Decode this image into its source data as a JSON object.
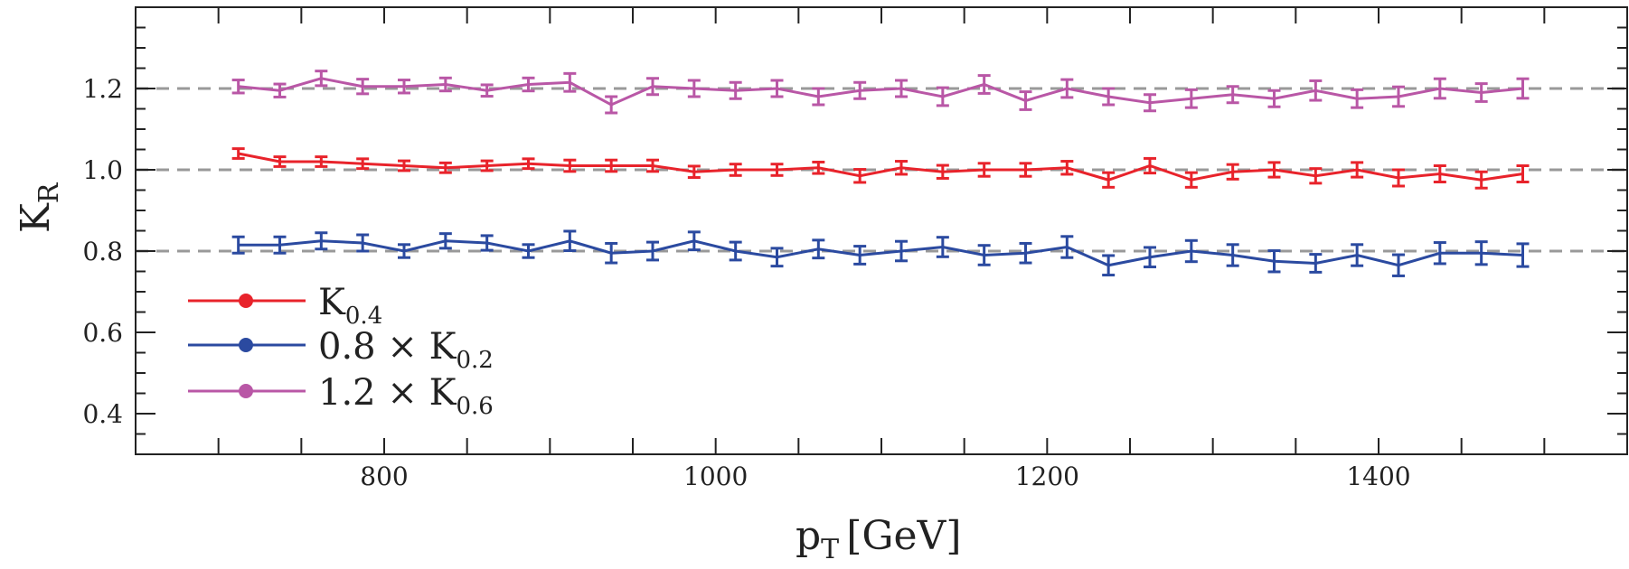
{
  "chart_data": {
    "type": "line",
    "xlabel_main": "p",
    "xlabel_sub": "T",
    "xlabel_unit": "[GeV]",
    "ylabel_main": "K",
    "ylabel_sub": "R",
    "xlim": [
      650,
      1550
    ],
    "ylim": [
      0.3,
      1.4
    ],
    "xticks": [
      800,
      1000,
      1200,
      1400
    ],
    "yticks": [
      0.4,
      0.6,
      0.8,
      1.0,
      1.2
    ],
    "xtick_labels": [
      "800",
      "1000",
      "1200",
      "1400"
    ],
    "ytick_labels": [
      "0.4",
      "0.6",
      "0.8",
      "1.0",
      "1.2"
    ],
    "reference_lines": [
      0.8,
      1.0,
      1.2
    ],
    "grid": false,
    "legend_position": "lower-left",
    "x": [
      712,
      737,
      762,
      787,
      812,
      837,
      862,
      887,
      912,
      937,
      962,
      987,
      1012,
      1037,
      1062,
      1087,
      1112,
      1137,
      1162,
      1187,
      1212,
      1237,
      1262,
      1287,
      1312,
      1337,
      1362,
      1387,
      1412,
      1437,
      1462,
      1487
    ],
    "series": [
      {
        "name_main": "K",
        "name_sub": "0.4",
        "name_prefix": "",
        "color": "#e8232b",
        "values": [
          1.04,
          1.02,
          1.02,
          1.015,
          1.01,
          1.005,
          1.01,
          1.015,
          1.01,
          1.01,
          1.01,
          0.995,
          1.0,
          1.0,
          1.005,
          0.985,
          1.005,
          0.995,
          1.0,
          1.0,
          1.005,
          0.975,
          1.01,
          0.975,
          0.995,
          1.0,
          0.985,
          1.0,
          0.98,
          0.99,
          0.975,
          0.99
        ],
        "errors": [
          0.012,
          0.012,
          0.012,
          0.012,
          0.012,
          0.012,
          0.012,
          0.012,
          0.014,
          0.014,
          0.014,
          0.014,
          0.014,
          0.014,
          0.014,
          0.016,
          0.016,
          0.016,
          0.016,
          0.016,
          0.016,
          0.018,
          0.018,
          0.018,
          0.018,
          0.018,
          0.018,
          0.018,
          0.02,
          0.02,
          0.02,
          0.02
        ]
      },
      {
        "name_main": "K",
        "name_sub": "0.2",
        "name_prefix": "0.8 × ",
        "color": "#2b4aa0",
        "values": [
          0.815,
          0.815,
          0.825,
          0.82,
          0.8,
          0.825,
          0.82,
          0.8,
          0.825,
          0.795,
          0.8,
          0.825,
          0.8,
          0.785,
          0.805,
          0.79,
          0.8,
          0.81,
          0.79,
          0.795,
          0.81,
          0.765,
          0.785,
          0.8,
          0.79,
          0.775,
          0.77,
          0.79,
          0.765,
          0.795,
          0.795,
          0.79
        ],
        "errors": [
          0.02,
          0.02,
          0.02,
          0.02,
          0.016,
          0.018,
          0.018,
          0.016,
          0.024,
          0.024,
          0.022,
          0.022,
          0.022,
          0.022,
          0.022,
          0.022,
          0.024,
          0.024,
          0.024,
          0.024,
          0.026,
          0.024,
          0.024,
          0.026,
          0.026,
          0.026,
          0.022,
          0.026,
          0.026,
          0.026,
          0.028,
          0.028
        ]
      },
      {
        "name_main": "K",
        "name_sub": "0.6",
        "name_prefix": "1.2 × ",
        "color": "#b957a6",
        "values": [
          1.205,
          1.195,
          1.225,
          1.205,
          1.205,
          1.21,
          1.195,
          1.21,
          1.215,
          1.16,
          1.205,
          1.2,
          1.195,
          1.2,
          1.18,
          1.195,
          1.2,
          1.18,
          1.21,
          1.17,
          1.2,
          1.18,
          1.165,
          1.175,
          1.185,
          1.175,
          1.195,
          1.175,
          1.18,
          1.2,
          1.19,
          1.2
        ],
        "errors": [
          0.016,
          0.016,
          0.018,
          0.018,
          0.016,
          0.016,
          0.014,
          0.016,
          0.022,
          0.02,
          0.02,
          0.02,
          0.02,
          0.02,
          0.02,
          0.02,
          0.02,
          0.022,
          0.022,
          0.022,
          0.022,
          0.02,
          0.02,
          0.022,
          0.02,
          0.02,
          0.024,
          0.022,
          0.024,
          0.024,
          0.022,
          0.024
        ]
      }
    ]
  }
}
